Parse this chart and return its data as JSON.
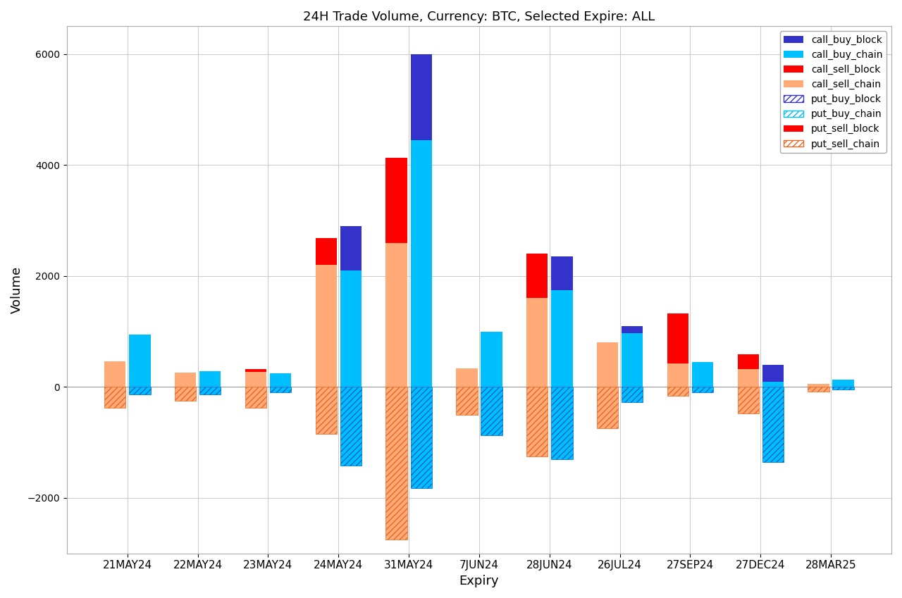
{
  "title": "24H Trade Volume, Currency: BTC, Selected Expire: ALL",
  "xlabel": "Expiry",
  "ylabel": "Volume",
  "categories": [
    "21MAY24",
    "22MAY24",
    "23MAY24",
    "24MAY24",
    "31MAY24",
    "7JUN24",
    "28JUN24",
    "26JUL24",
    "27SEP24",
    "27DEC24",
    "28MAR25"
  ],
  "ylim": [
    -3000,
    6500
  ],
  "yticks": [
    -2000,
    0,
    2000,
    4000,
    6000
  ],
  "series": {
    "call_buy_block": [
      0,
      0,
      0,
      800,
      1550,
      0,
      600,
      130,
      0,
      300,
      0
    ],
    "call_buy_chain": [
      950,
      280,
      250,
      2100,
      4450,
      1000,
      1750,
      970,
      450,
      100,
      130
    ],
    "call_sell_block": [
      0,
      0,
      50,
      480,
      1530,
      0,
      800,
      0,
      900,
      270,
      0
    ],
    "call_sell_chain": [
      460,
      260,
      270,
      2200,
      2600,
      340,
      1600,
      800,
      420,
      320,
      50
    ],
    "put_buy_block": [
      0,
      0,
      0,
      0,
      0,
      0,
      0,
      0,
      0,
      0,
      0
    ],
    "put_buy_chain": [
      -130,
      -130,
      -100,
      -1420,
      -1820,
      -870,
      -1300,
      -270,
      -100,
      -1350,
      -50
    ],
    "put_sell_block": [
      0,
      0,
      0,
      0,
      0,
      0,
      0,
      0,
      0,
      0,
      0
    ],
    "put_sell_chain": [
      -380,
      -250,
      -380,
      -850,
      -2750,
      -500,
      -1250,
      -750,
      -160,
      -480,
      -80
    ]
  },
  "colors": {
    "call_buy_block": "#3333cc",
    "call_buy_chain": "#00bfff",
    "call_sell_block": "#ff0000",
    "call_sell_chain": "#ffaa77",
    "put_buy_block": "#3333cc",
    "put_buy_chain": "#00bfff",
    "put_sell_block": "#ff0000",
    "put_sell_chain": "#ffaa77"
  },
  "hatch_sell": "////",
  "hatch_buy": "////",
  "bar_width": 0.32,
  "background_color": "#ffffff",
  "grid_color": "#cccccc"
}
